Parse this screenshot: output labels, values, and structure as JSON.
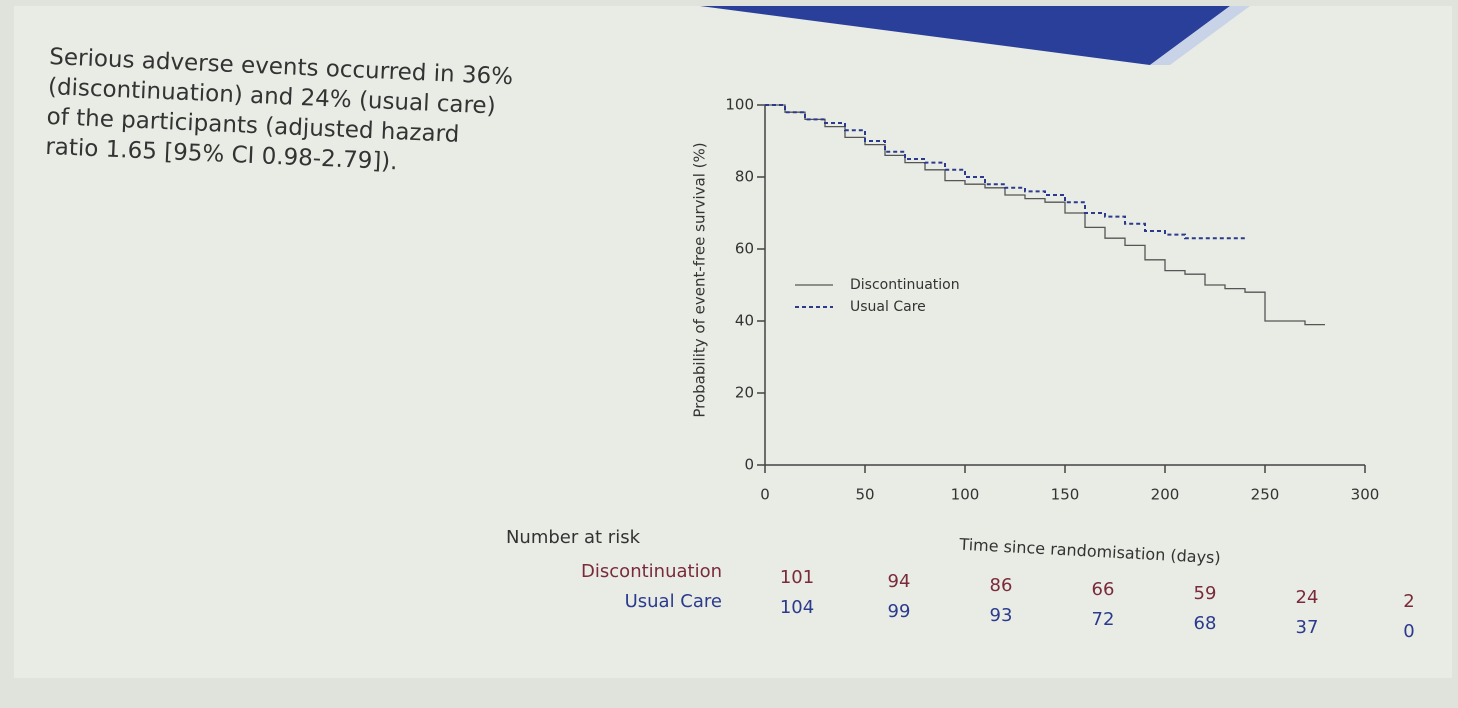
{
  "note_text": "Serious adverse events occurred in 36% (discontinuation) and 24% (usual care) of the participants (adjusted hazard ratio 1.65 [95% CI 0.98-2.79]).",
  "chart_data": {
    "type": "step",
    "y_label": "Probability of event-free survival (%)",
    "x_label": "Time since randomisation (days)",
    "x": [
      0,
      10,
      20,
      30,
      40,
      50,
      60,
      70,
      80,
      90,
      100,
      110,
      120,
      130,
      140,
      150,
      160,
      170,
      180,
      190,
      200,
      210,
      220,
      230,
      240,
      250,
      260,
      270,
      280
    ],
    "series": [
      {
        "name": "Discontinuation",
        "color": "#555555",
        "dash": false,
        "values": [
          100,
          98,
          96,
          94,
          91,
          89,
          86,
          84,
          82,
          79,
          78,
          77,
          75,
          74,
          73,
          70,
          66,
          63,
          61,
          57,
          54,
          53,
          50,
          49,
          48,
          40,
          40,
          39,
          39
        ]
      },
      {
        "name": "Usual Care",
        "color": "#2b3a8c",
        "dash": true,
        "values": [
          100,
          98,
          96,
          95,
          93,
          90,
          87,
          85,
          84,
          82,
          80,
          78,
          77,
          76,
          75,
          73,
          70,
          69,
          67,
          65,
          64,
          63,
          63,
          63,
          63,
          null,
          null,
          null,
          null
        ]
      }
    ],
    "xlim": [
      0,
      300
    ],
    "xticks": [
      0,
      50,
      100,
      150,
      200,
      250,
      300
    ],
    "ylim": [
      0,
      100
    ],
    "yticks": [
      0,
      20,
      40,
      60,
      80,
      100
    ],
    "legend": "center-left",
    "risk_table": {
      "title": "Number at risk",
      "rows": [
        {
          "name": "Discontinuation",
          "color": "#7a2a3a",
          "values": [
            101,
            94,
            86,
            66,
            59,
            24,
            2
          ]
        },
        {
          "name": "Usual Care",
          "color": "#2b3a8c",
          "values": [
            104,
            99,
            93,
            72,
            68,
            37,
            0
          ]
        }
      ]
    }
  }
}
